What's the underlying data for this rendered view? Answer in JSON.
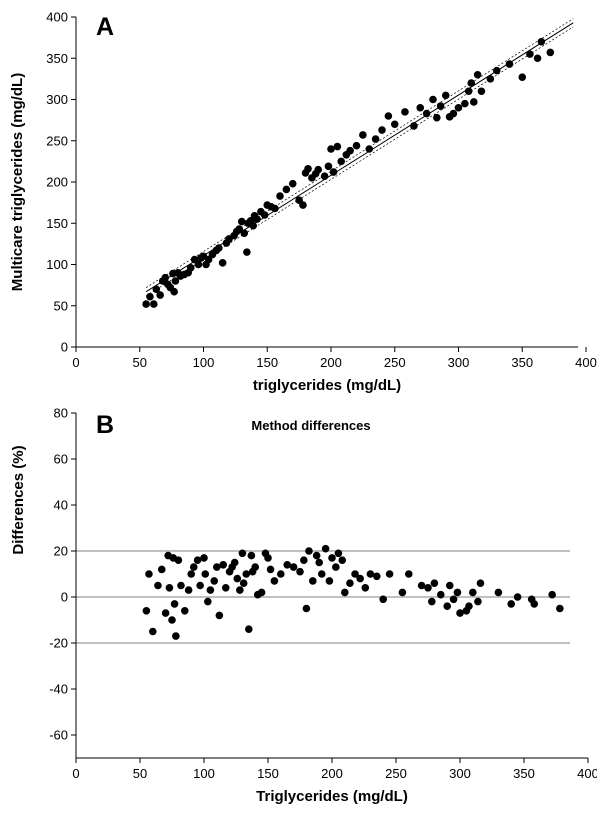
{
  "chart_data": [
    {
      "panel_label": "A",
      "type": "scatter",
      "title": "",
      "xlabel": "triglycerides (mg/dL)",
      "ylabel": "Multicare triglycerides (mg/dL)",
      "xlim": [
        0,
        400
      ],
      "ylim": [
        0,
        400
      ],
      "xticks": [
        0,
        50,
        100,
        150,
        200,
        250,
        300,
        350,
        400
      ],
      "yticks": [
        0,
        50,
        100,
        150,
        200,
        250,
        300,
        350,
        400
      ],
      "grid": false,
      "regression": {
        "x": [
          55,
          390
        ],
        "y": [
          67,
          393
        ]
      },
      "confidence_band": {
        "lower": {
          "x": [
            55,
            390
          ],
          "y": [
            62,
            388
          ]
        },
        "upper": {
          "x": [
            55,
            390
          ],
          "y": [
            72,
            398
          ]
        }
      },
      "points": {
        "x": [
          55,
          58,
          61,
          63,
          66,
          68,
          70,
          72,
          74,
          76,
          77,
          78,
          80,
          82,
          85,
          88,
          90,
          93,
          96,
          98,
          100,
          102,
          104,
          107,
          110,
          112,
          115,
          118,
          120,
          124,
          126,
          128,
          130,
          132,
          134,
          135,
          137,
          139,
          140,
          142,
          145,
          148,
          150,
          153,
          156,
          160,
          165,
          170,
          175,
          178,
          180,
          182,
          185,
          188,
          190,
          195,
          198,
          200,
          202,
          205,
          208,
          212,
          215,
          220,
          225,
          230,
          235,
          240,
          245,
          250,
          258,
          265,
          270,
          275,
          280,
          283,
          286,
          290,
          293,
          296,
          300,
          305,
          308,
          310,
          312,
          315,
          318,
          325,
          330,
          340,
          350,
          356,
          362,
          365,
          372
        ],
        "y": [
          52,
          61,
          52,
          70,
          63,
          80,
          84,
          76,
          72,
          89,
          67,
          80,
          90,
          86,
          88,
          90,
          96,
          106,
          100,
          108,
          110,
          100,
          106,
          112,
          117,
          120,
          102,
          126,
          131,
          135,
          140,
          143,
          152,
          138,
          115,
          150,
          153,
          147,
          159,
          155,
          164,
          160,
          172,
          170,
          168,
          183,
          191,
          198,
          178,
          172,
          211,
          216,
          205,
          210,
          215,
          207,
          219,
          240,
          212,
          243,
          225,
          233,
          238,
          244,
          257,
          240,
          252,
          263,
          280,
          270,
          285,
          268,
          290,
          283,
          300,
          278,
          292,
          305,
          279,
          283,
          290,
          295,
          310,
          320,
          297,
          330,
          310,
          325,
          335,
          343,
          327,
          355,
          350,
          370,
          357
        ]
      }
    },
    {
      "panel_label": "B",
      "type": "scatter",
      "title": "Method differences",
      "xlabel": "Triglycerides (mg/dL)",
      "ylabel": "Differences (%)",
      "xlim": [
        0,
        400
      ],
      "ylim": [
        -70,
        80
      ],
      "xticks": [
        0,
        50,
        100,
        150,
        200,
        250,
        300,
        350,
        400
      ],
      "yticks": [
        -60,
        -40,
        -20,
        0,
        20,
        40,
        60,
        80
      ],
      "grid": false,
      "reference_lines": [
        20,
        0,
        -20
      ],
      "points": {
        "x": [
          55,
          57,
          60,
          64,
          67,
          70,
          72,
          73,
          75,
          76,
          77,
          78,
          80,
          82,
          85,
          88,
          90,
          92,
          95,
          97,
          100,
          101,
          103,
          105,
          108,
          110,
          112,
          115,
          117,
          120,
          122,
          124,
          126,
          128,
          130,
          131,
          133,
          135,
          137,
          138,
          140,
          142,
          145,
          148,
          150,
          152,
          155,
          160,
          165,
          170,
          175,
          178,
          180,
          182,
          185,
          188,
          190,
          192,
          195,
          198,
          200,
          203,
          205,
          208,
          210,
          214,
          218,
          222,
          226,
          230,
          235,
          240,
          245,
          255,
          260,
          270,
          275,
          278,
          280,
          285,
          290,
          292,
          295,
          298,
          300,
          305,
          307,
          310,
          314,
          316,
          330,
          340,
          345,
          356,
          358,
          372,
          378
        ],
        "y": [
          -6,
          10,
          -15,
          5,
          12,
          -7,
          18,
          4,
          -10,
          17,
          -3,
          -17,
          16,
          5,
          -6,
          3,
          10,
          13,
          16,
          5,
          17,
          10,
          -2,
          3,
          7,
          13,
          -8,
          14,
          4,
          11,
          13,
          15,
          8,
          3,
          19,
          6,
          10,
          -14,
          18,
          11,
          13,
          1,
          2,
          19,
          17,
          12,
          7,
          10,
          14,
          13,
          11,
          16,
          -5,
          20,
          7,
          18,
          15,
          10,
          21,
          7,
          17,
          13,
          19,
          16,
          2,
          6,
          10,
          8,
          4,
          10,
          9,
          -1,
          10,
          2,
          10,
          5,
          4,
          -2,
          6,
          1,
          -4,
          5,
          -1,
          2,
          -7,
          -6,
          -4,
          2,
          -2,
          6,
          2,
          -3,
          0,
          -1,
          -3,
          1,
          -5
        ]
      }
    }
  ]
}
